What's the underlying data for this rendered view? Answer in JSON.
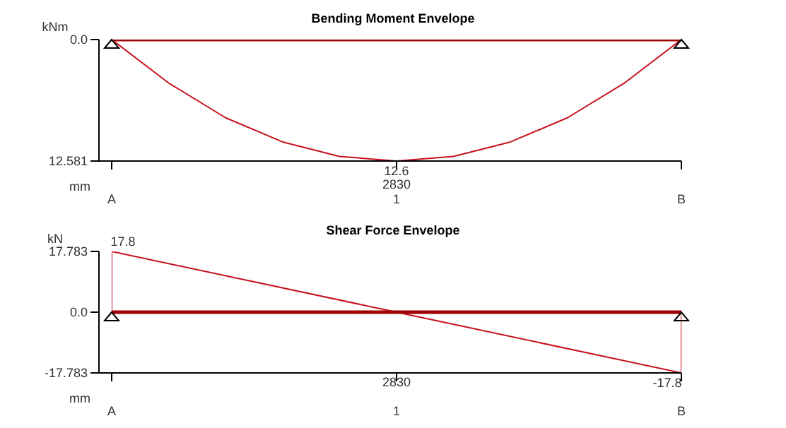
{
  "chart_data": [
    {
      "type": "line",
      "title": "Bending Moment Envelope",
      "ylabel": "kNm",
      "xlabel": "mm",
      "ylim": [
        12.581,
        0
      ],
      "yticks": [
        {
          "value": 0,
          "label": "0.0"
        },
        12.581
      ],
      "categories": [
        "A",
        null,
        null,
        null,
        null,
        "1",
        null,
        null,
        null,
        null,
        "B"
      ],
      "series": [
        {
          "color": "#c8101e",
          "values": [
            0,
            4.5,
            8.1,
            10.6,
            12.1,
            12.581,
            12.1,
            10.6,
            8.1,
            4.5,
            0
          ],
          "value_labels": [
            null,
            null,
            null,
            null,
            null,
            "12.6",
            null,
            null,
            null,
            null,
            null
          ]
        },
        {
          "color": "#a00000",
          "values": [
            0,
            0,
            0,
            0,
            0,
            0,
            0,
            0,
            0,
            0,
            0
          ]
        }
      ],
      "annotations": [
        "2830"
      ]
    },
    {
      "type": "line",
      "title": "Shear Force Envelope",
      "ylabel": "kN",
      "xlabel": "mm",
      "ylim": [
        -17.783,
        17.783
      ],
      "yticks": [
        17.783,
        {
          "value": 0,
          "label": "0.0"
        },
        -17.783
      ],
      "categories": [
        "A",
        "1",
        "B"
      ],
      "series": [
        {
          "color": "#c8101e",
          "values": [
            17.783,
            0,
            -17.783
          ],
          "value_labels": [
            "17.8",
            null,
            "-17.8"
          ]
        },
        {
          "color": "#c8101e",
          "x": [
            "A",
            "A"
          ],
          "values": [
            0,
            17.783
          ]
        },
        {
          "color": "#c8101e",
          "x": [
            "B",
            "B"
          ],
          "values": [
            -17.783,
            0
          ]
        },
        {
          "color": "#a00000",
          "values": [
            0,
            0,
            0
          ]
        }
      ],
      "annotations": [
        "2830"
      ]
    }
  ]
}
